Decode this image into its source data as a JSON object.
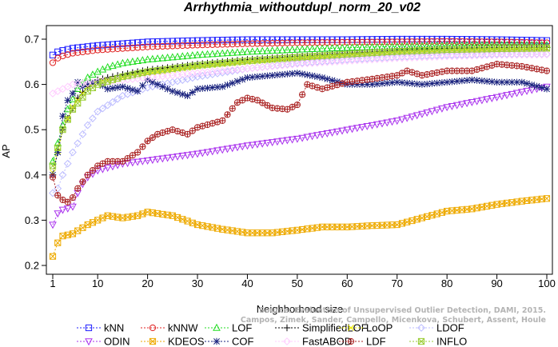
{
  "chart_data": {
    "type": "line",
    "title": "Arrhythmia_withoutdupl_norm_20_v02",
    "xlabel": "Neighborhood size",
    "ylabel": "AP",
    "xlim": [
      1,
      100
    ],
    "ylim": [
      0.2,
      0.72
    ],
    "x_ticks": [
      1,
      10,
      20,
      30,
      40,
      50,
      60,
      70,
      80,
      90,
      100
    ],
    "y_ticks": [
      0.2,
      0.3,
      0.4,
      0.5,
      0.6,
      0.7
    ],
    "grid": false,
    "legend_position": "bottom",
    "watermark": [
      "Source: Evaluation of Unsupervised Outlier Detection, DAMI, 2015.",
      "Campos, Zimek, Sander, Campello, Micenkova, Schubert, Assent, Houle"
    ],
    "series": [
      {
        "name": "kNN",
        "color": "#1f1fff",
        "marker": "square",
        "points": [
          [
            1,
            0.665
          ],
          [
            2,
            0.672
          ],
          [
            3,
            0.675
          ],
          [
            5,
            0.68
          ],
          [
            10,
            0.686
          ],
          [
            20,
            0.694
          ],
          [
            30,
            0.697
          ],
          [
            40,
            0.699
          ],
          [
            50,
            0.699
          ],
          [
            60,
            0.699
          ],
          [
            70,
            0.7
          ],
          [
            80,
            0.7
          ],
          [
            90,
            0.699
          ],
          [
            100,
            0.697
          ]
        ]
      },
      {
        "name": "kNNW",
        "color": "#e02020",
        "marker": "circle",
        "points": [
          [
            1,
            0.648
          ],
          [
            2,
            0.658
          ],
          [
            3,
            0.663
          ],
          [
            5,
            0.669
          ],
          [
            10,
            0.676
          ],
          [
            20,
            0.683
          ],
          [
            30,
            0.687
          ],
          [
            40,
            0.69
          ],
          [
            50,
            0.692
          ],
          [
            60,
            0.693
          ],
          [
            70,
            0.694
          ],
          [
            80,
            0.695
          ],
          [
            90,
            0.694
          ],
          [
            100,
            0.692
          ]
        ]
      },
      {
        "name": "LOF",
        "color": "#22dd22",
        "marker": "triangle",
        "points": [
          [
            1,
            0.43
          ],
          [
            2,
            0.47
          ],
          [
            3,
            0.51
          ],
          [
            4,
            0.545
          ],
          [
            6,
            0.59
          ],
          [
            8,
            0.615
          ],
          [
            10,
            0.628
          ],
          [
            12,
            0.638
          ],
          [
            15,
            0.647
          ],
          [
            20,
            0.655
          ],
          [
            30,
            0.665
          ],
          [
            40,
            0.672
          ],
          [
            50,
            0.677
          ],
          [
            60,
            0.681
          ],
          [
            70,
            0.684
          ],
          [
            80,
            0.686
          ],
          [
            90,
            0.687
          ],
          [
            100,
            0.687
          ]
        ]
      },
      {
        "name": "SimplifiedLOF",
        "color": "#000000",
        "marker": "plus",
        "points": [
          [
            1,
            0.4
          ],
          [
            2,
            0.45
          ],
          [
            3,
            0.5
          ],
          [
            4,
            0.525
          ],
          [
            6,
            0.57
          ],
          [
            8,
            0.595
          ],
          [
            10,
            0.61
          ],
          [
            12,
            0.615
          ],
          [
            15,
            0.622
          ],
          [
            20,
            0.632
          ],
          [
            30,
            0.645
          ],
          [
            40,
            0.655
          ],
          [
            50,
            0.662
          ],
          [
            60,
            0.668
          ],
          [
            70,
            0.675
          ],
          [
            80,
            0.679
          ],
          [
            90,
            0.681
          ],
          [
            100,
            0.682
          ]
        ]
      },
      {
        "name": "LoOP",
        "color": "#eeee00",
        "marker": "cross",
        "points": [
          [
            1,
            0.405
          ],
          [
            3,
            0.5
          ],
          [
            5,
            0.55
          ],
          [
            8,
            0.595
          ],
          [
            10,
            0.605
          ],
          [
            15,
            0.615
          ],
          [
            20,
            0.625
          ],
          [
            30,
            0.64
          ],
          [
            40,
            0.65
          ],
          [
            50,
            0.658
          ],
          [
            60,
            0.664
          ],
          [
            70,
            0.67
          ],
          [
            80,
            0.674
          ],
          [
            90,
            0.677
          ],
          [
            100,
            0.679
          ]
        ]
      },
      {
        "name": "LDOF",
        "color": "#bbbbff",
        "marker": "diamond",
        "points": [
          [
            1,
            0.36
          ],
          [
            2,
            0.37
          ],
          [
            3,
            0.4
          ],
          [
            5,
            0.45
          ],
          [
            8,
            0.51
          ],
          [
            10,
            0.54
          ],
          [
            15,
            0.575
          ],
          [
            20,
            0.593
          ],
          [
            30,
            0.617
          ],
          [
            40,
            0.635
          ],
          [
            50,
            0.647
          ],
          [
            60,
            0.655
          ],
          [
            70,
            0.661
          ],
          [
            80,
            0.665
          ],
          [
            90,
            0.667
          ],
          [
            100,
            0.667
          ]
        ]
      },
      {
        "name": "ODIN",
        "color": "#aa33ee",
        "marker": "triangle-down",
        "points": [
          [
            1,
            0.29
          ],
          [
            2,
            0.315
          ],
          [
            3,
            0.323
          ],
          [
            4,
            0.326
          ],
          [
            5,
            0.33
          ],
          [
            6,
            0.36
          ],
          [
            7,
            0.38
          ],
          [
            8,
            0.395
          ],
          [
            10,
            0.41
          ],
          [
            15,
            0.425
          ],
          [
            20,
            0.432
          ],
          [
            30,
            0.447
          ],
          [
            40,
            0.465
          ],
          [
            50,
            0.48
          ],
          [
            60,
            0.5
          ],
          [
            70,
            0.52
          ],
          [
            75,
            0.535
          ],
          [
            80,
            0.55
          ],
          [
            90,
            0.572
          ],
          [
            100,
            0.595
          ]
        ]
      },
      {
        "name": "KDEOS",
        "color": "#eeaa00",
        "marker": "square-x",
        "points": [
          [
            1,
            0.22
          ],
          [
            2,
            0.25
          ],
          [
            3,
            0.265
          ],
          [
            5,
            0.27
          ],
          [
            8,
            0.29
          ],
          [
            10,
            0.3
          ],
          [
            12,
            0.31
          ],
          [
            15,
            0.305
          ],
          [
            18,
            0.31
          ],
          [
            20,
            0.318
          ],
          [
            25,
            0.31
          ],
          [
            30,
            0.29
          ],
          [
            35,
            0.28
          ],
          [
            40,
            0.272
          ],
          [
            45,
            0.272
          ],
          [
            50,
            0.278
          ],
          [
            55,
            0.285
          ],
          [
            60,
            0.285
          ],
          [
            65,
            0.288
          ],
          [
            70,
            0.29
          ],
          [
            75,
            0.305
          ],
          [
            80,
            0.32
          ],
          [
            85,
            0.325
          ],
          [
            90,
            0.335
          ],
          [
            95,
            0.342
          ],
          [
            100,
            0.348
          ]
        ]
      },
      {
        "name": "COF",
        "color": "#1a237e",
        "marker": "asterisk",
        "points": [
          [
            1,
            0.4
          ],
          [
            2,
            0.45
          ],
          [
            3,
            0.53
          ],
          [
            4,
            0.565
          ],
          [
            5,
            0.58
          ],
          [
            6,
            0.605
          ],
          [
            7,
            0.595
          ],
          [
            8,
            0.6
          ],
          [
            10,
            0.605
          ],
          [
            12,
            0.59
          ],
          [
            15,
            0.595
          ],
          [
            18,
            0.585
          ],
          [
            20,
            0.61
          ],
          [
            25,
            0.585
          ],
          [
            28,
            0.575
          ],
          [
            30,
            0.59
          ],
          [
            35,
            0.595
          ],
          [
            40,
            0.615
          ],
          [
            45,
            0.62
          ],
          [
            50,
            0.625
          ],
          [
            55,
            0.615
          ],
          [
            60,
            0.6
          ],
          [
            65,
            0.6
          ],
          [
            70,
            0.605
          ],
          [
            75,
            0.6
          ],
          [
            80,
            0.605
          ],
          [
            85,
            0.61
          ],
          [
            90,
            0.605
          ],
          [
            95,
            0.605
          ],
          [
            100,
            0.59
          ]
        ]
      },
      {
        "name": "FastABOD",
        "color": "#ffccff",
        "marker": "diamond",
        "points": [
          [
            1,
            0.58
          ],
          [
            3,
            0.59
          ],
          [
            5,
            0.6
          ],
          [
            10,
            0.605
          ],
          [
            20,
            0.615
          ],
          [
            30,
            0.625
          ],
          [
            40,
            0.635
          ],
          [
            50,
            0.645
          ],
          [
            60,
            0.652
          ],
          [
            70,
            0.658
          ],
          [
            80,
            0.662
          ],
          [
            90,
            0.665
          ],
          [
            100,
            0.666
          ]
        ]
      },
      {
        "name": "LDF",
        "color": "#aa2222",
        "marker": "circle-plus",
        "points": [
          [
            1,
            0.395
          ],
          [
            2,
            0.355
          ],
          [
            3,
            0.345
          ],
          [
            4,
            0.34
          ],
          [
            5,
            0.35
          ],
          [
            6,
            0.37
          ],
          [
            8,
            0.4
          ],
          [
            10,
            0.42
          ],
          [
            12,
            0.43
          ],
          [
            15,
            0.43
          ],
          [
            18,
            0.45
          ],
          [
            20,
            0.475
          ],
          [
            22,
            0.49
          ],
          [
            25,
            0.5
          ],
          [
            28,
            0.49
          ],
          [
            30,
            0.505
          ],
          [
            35,
            0.52
          ],
          [
            38,
            0.56
          ],
          [
            40,
            0.57
          ],
          [
            42,
            0.565
          ],
          [
            45,
            0.548
          ],
          [
            48,
            0.545
          ],
          [
            50,
            0.555
          ],
          [
            52,
            0.6
          ],
          [
            55,
            0.59
          ],
          [
            60,
            0.605
          ],
          [
            65,
            0.612
          ],
          [
            70,
            0.62
          ],
          [
            72,
            0.63
          ],
          [
            75,
            0.62
          ],
          [
            80,
            0.63
          ],
          [
            85,
            0.63
          ],
          [
            90,
            0.645
          ],
          [
            95,
            0.64
          ],
          [
            100,
            0.63
          ]
        ]
      },
      {
        "name": "INFLO",
        "color": "#99cc33",
        "marker": "square-x",
        "points": [
          [
            1,
            0.42
          ],
          [
            2,
            0.46
          ],
          [
            3,
            0.5
          ],
          [
            5,
            0.545
          ],
          [
            8,
            0.585
          ],
          [
            10,
            0.6
          ],
          [
            15,
            0.617
          ],
          [
            20,
            0.628
          ],
          [
            30,
            0.642
          ],
          [
            40,
            0.652
          ],
          [
            50,
            0.66
          ],
          [
            60,
            0.667
          ],
          [
            70,
            0.673
          ],
          [
            80,
            0.677
          ],
          [
            90,
            0.679
          ],
          [
            100,
            0.68
          ]
        ]
      }
    ]
  }
}
